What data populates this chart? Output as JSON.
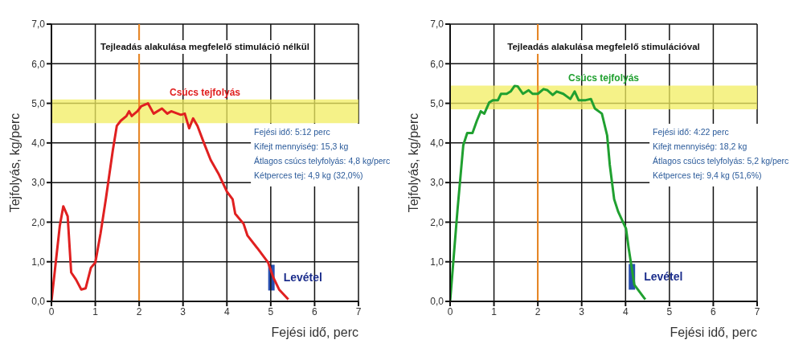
{
  "chart_data": [
    {
      "type": "line",
      "title": "Tejleadás alakulása megfelelő stimuláció nélkül",
      "xlabel": "Fejési idő, perc",
      "ylabel": "Tejfolyás, kg/perc",
      "x": [
        0,
        0.19,
        0.27,
        0.37,
        0.45,
        0.56,
        0.68,
        0.78,
        0.9,
        1.0,
        1.12,
        1.24,
        1.4,
        1.49,
        1.58,
        1.71,
        1.77,
        1.83,
        1.96,
        2.05,
        2.2,
        2.33,
        2.52,
        2.64,
        2.73,
        2.95,
        3.04,
        3.14,
        3.23,
        3.33,
        3.48,
        3.63,
        3.82,
        4.0,
        4.13,
        4.19,
        4.38,
        4.47,
        4.69,
        4.94,
        5.06,
        5.19,
        5.4
      ],
      "series": [
        {
          "color": "#e02020",
          "values": [
            0,
            1.9,
            2.4,
            2.15,
            0.73,
            0.55,
            0.3,
            0.33,
            0.85,
            0.98,
            1.72,
            2.58,
            3.82,
            4.43,
            4.56,
            4.68,
            4.8,
            4.68,
            4.8,
            4.93,
            5.0,
            4.74,
            4.87,
            4.74,
            4.8,
            4.71,
            4.74,
            4.37,
            4.62,
            4.43,
            3.99,
            3.57,
            3.2,
            2.77,
            2.58,
            2.21,
            1.96,
            1.66,
            1.35,
            0.98,
            0.6,
            0.3,
            0.05
          ]
        }
      ],
      "xlim": [
        0,
        7
      ],
      "xticks": [
        0,
        1,
        2,
        3,
        4,
        5,
        6,
        7
      ],
      "ylim": [
        0,
        7
      ],
      "yticks": [
        {
          "value": 0,
          "label": "0,0"
        },
        {
          "value": 1,
          "label": "1,0"
        },
        {
          "value": 2,
          "label": "2,0"
        },
        {
          "value": 3,
          "label": "3,0"
        },
        {
          "value": 4,
          "label": "4,0"
        },
        {
          "value": 5,
          "label": "5,0"
        },
        {
          "value": 6,
          "label": "6,0"
        },
        {
          "value": 7,
          "label": "7,0"
        }
      ],
      "grid": true,
      "line_style": "solid",
      "marker": "none",
      "ref_lines": [
        {
          "axis": "x",
          "value": 2,
          "color": "#f08a24"
        }
      ],
      "bands": [
        {
          "axis": "y",
          "from": 4.5,
          "to": 5.1,
          "label": "Csúcs tejfolyás",
          "color": "#f2ee60"
        }
      ],
      "annotations": [
        {
          "text": "Levétel",
          "x": 5.07,
          "y": 0.6
        },
        "Fejési idő: 5:12 perc",
        "Kifejt mennyiség: 15,3 kg",
        "Átlagos csúcs telyfolyás: 4,8 kg/perc",
        "Kétperces tej: 4,9 kg (32,0%)"
      ]
    },
    {
      "type": "line",
      "title": "Tejleadás alakulása megfelelő stimulációval",
      "xlabel": "Fejési idő, perc",
      "ylabel": "Tejfolyás, kg/perc",
      "x": [
        0,
        0.17,
        0.3,
        0.39,
        0.51,
        0.61,
        0.7,
        0.78,
        0.89,
        0.98,
        1.09,
        1.16,
        1.29,
        1.38,
        1.47,
        1.54,
        1.66,
        1.79,
        1.88,
        2.0,
        2.13,
        2.22,
        2.34,
        2.43,
        2.58,
        2.74,
        2.84,
        2.93,
        3.09,
        3.21,
        3.3,
        3.46,
        3.58,
        3.64,
        3.74,
        3.83,
        4.01,
        4.07,
        4.14,
        4.2,
        4.45
      ],
      "series": [
        {
          "color": "#20a030",
          "values": [
            0,
            2.33,
            3.94,
            4.25,
            4.25,
            4.56,
            4.8,
            4.74,
            5.02,
            5.08,
            5.08,
            5.24,
            5.24,
            5.3,
            5.44,
            5.43,
            5.24,
            5.33,
            5.24,
            5.24,
            5.36,
            5.33,
            5.21,
            5.3,
            5.24,
            5.11,
            5.3,
            5.08,
            5.08,
            5.11,
            4.87,
            4.74,
            4.19,
            3.45,
            2.58,
            2.27,
            1.84,
            1.35,
            0.85,
            0.42,
            0.05
          ]
        }
      ],
      "xlim": [
        0,
        7
      ],
      "xticks": [
        0,
        1,
        2,
        3,
        4,
        5,
        6,
        7
      ],
      "ylim": [
        0,
        7
      ],
      "yticks": [
        {
          "value": 0,
          "label": "0,0"
        },
        {
          "value": 1,
          "label": "1,0"
        },
        {
          "value": 2,
          "label": "2,0"
        },
        {
          "value": 3,
          "label": "3,0"
        },
        {
          "value": 4,
          "label": "4,0"
        },
        {
          "value": 5,
          "label": "5,0"
        },
        {
          "value": 6,
          "label": "6,0"
        },
        {
          "value": 7,
          "label": "7,0"
        }
      ],
      "grid": true,
      "line_style": "solid",
      "marker": "none",
      "ref_lines": [
        {
          "axis": "x",
          "value": 2,
          "color": "#f08a24"
        }
      ],
      "bands": [
        {
          "axis": "y",
          "from": 4.85,
          "to": 5.45,
          "label": "Csúcs tejfolyás",
          "color": "#f2ee60"
        }
      ],
      "annotations": [
        {
          "text": "Levétel",
          "x": 4.2,
          "y": 0.62
        },
        "Fejési idő: 4:22 perc",
        "Kifejt mennyiség: 18,2 kg",
        "Átlagos csúcs telyfolyás: 5,2 kg/perc",
        "Kétperces tej: 9,4 kg (51,6%)"
      ]
    }
  ]
}
